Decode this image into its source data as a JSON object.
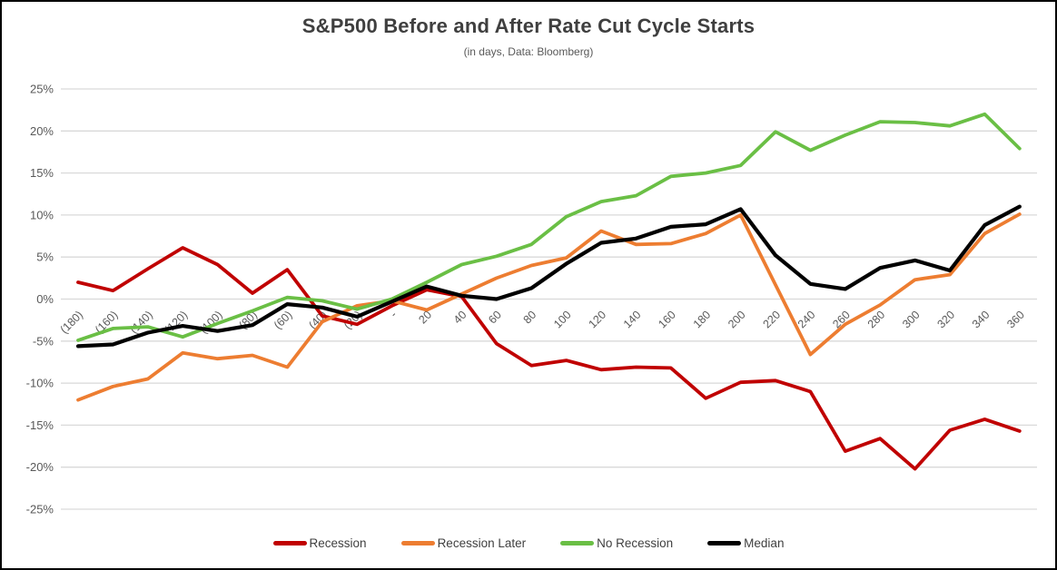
{
  "chart_data": {
    "type": "line",
    "title": "S&P500 Before and After Rate Cut Cycle Starts",
    "subtitle": "(in days, Data: Bloomberg)",
    "xlabel": "",
    "ylabel": "",
    "ylim": [
      -25,
      25
    ],
    "y_tick_step": 5,
    "grid": "horizontal",
    "legend_position": "bottom",
    "colors": {
      "grid": "#d9d9d9",
      "axis_text": "#595959",
      "title_text": "#3f3f3f",
      "recession": "#c00000",
      "recession_later": "#ed7d31",
      "no_recession": "#6abf45",
      "median": "#000000"
    },
    "y_tick_labels": [
      "25%",
      "20%",
      "15%",
      "10%",
      "5%",
      "0%",
      "-5%",
      "-10%",
      "-15%",
      "-20%",
      "-25%"
    ],
    "categories": [
      "(180)",
      "(160)",
      "(140)",
      "(120)",
      "(100)",
      "(80)",
      "(60)",
      "(40)",
      "(20)",
      "-",
      "20",
      "40",
      "60",
      "80",
      "100",
      "120",
      "140",
      "160",
      "180",
      "200",
      "220",
      "240",
      "260",
      "280",
      "300",
      "320",
      "340",
      "360"
    ],
    "series": [
      {
        "name": "Recession",
        "color": "#c00000",
        "values": [
          2.0,
          1.0,
          3.6,
          6.1,
          4.1,
          0.7,
          3.5,
          -2.0,
          -3.0,
          -0.8,
          1.1,
          0.3,
          -5.3,
          -7.9,
          -7.3,
          -8.4,
          -8.1,
          -8.2,
          -11.8,
          -9.9,
          -9.7,
          -11.0,
          -18.1,
          -16.6,
          -20.2,
          -15.6,
          -14.3,
          -15.7
        ]
      },
      {
        "name": "Recession Later",
        "color": "#ed7d31",
        "values": [
          -12.0,
          -10.4,
          -9.5,
          -6.4,
          -7.1,
          -6.7,
          -8.1,
          -2.7,
          -0.8,
          -0.2,
          -1.3,
          0.6,
          2.5,
          4.0,
          4.9,
          8.1,
          6.5,
          6.6,
          7.8,
          10.0,
          1.7,
          -6.6,
          -3.0,
          -0.7,
          2.3,
          2.9,
          7.8,
          10.1
        ]
      },
      {
        "name": "No Recession",
        "color": "#6abf45",
        "values": [
          -4.9,
          -3.5,
          -3.3,
          -4.5,
          -2.9,
          -1.4,
          0.2,
          -0.2,
          -1.2,
          0.0,
          2.0,
          4.1,
          5.1,
          6.5,
          9.8,
          11.6,
          12.3,
          14.6,
          15.0,
          15.9,
          19.9,
          17.7,
          19.5,
          21.1,
          21.0,
          20.6,
          22.0,
          17.9
        ]
      },
      {
        "name": "Median",
        "color": "#000000",
        "values": [
          -5.6,
          -5.4,
          -4.0,
          -3.2,
          -3.8,
          -3.1,
          -0.6,
          -1.0,
          -2.1,
          -0.3,
          1.5,
          0.4,
          0.0,
          1.3,
          4.2,
          6.7,
          7.2,
          8.6,
          8.9,
          10.7,
          5.2,
          1.8,
          1.2,
          3.7,
          4.6,
          3.4,
          8.8,
          11.0
        ]
      }
    ]
  }
}
